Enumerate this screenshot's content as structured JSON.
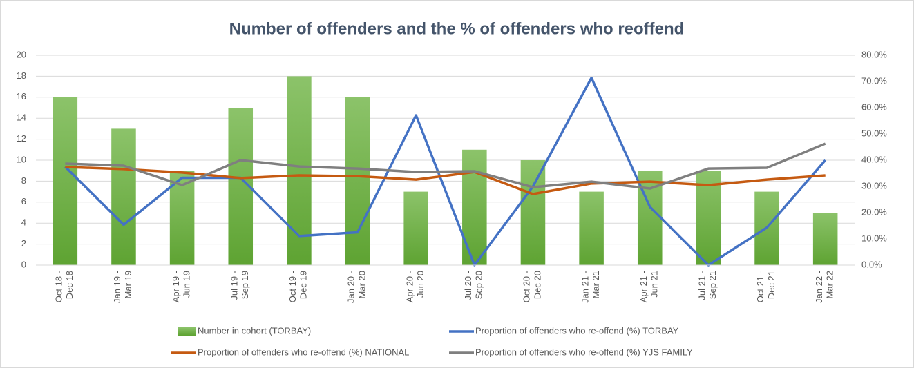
{
  "chart_data": {
    "type": "bar_line",
    "title": "Number of offenders and the % of offenders who reoffend",
    "categories": [
      "Oct 18 - Dec 18",
      "Jan 19 - Mar 19",
      "Apr 19 - Jun 19",
      "Jul 19 - Sep 19",
      "Oct 19 - Dec 19",
      "Jan 20 - Mar 20",
      "Apr 20 - Jun 20",
      "Jul 20 - Sep 20",
      "Oct 20 - Dec 20",
      "Jan 21 - Mar 21",
      "Apr 21 - Jun 21",
      "Jul 21 - Sep 21",
      "Oct 21 - Dec 21",
      "Jan 22 - Mar 22"
    ],
    "series": [
      {
        "name": "Number in cohort (TORBAY)",
        "type": "bar",
        "color": "#70ad47",
        "values": [
          16,
          13,
          9,
          15,
          18,
          16,
          7,
          11,
          10,
          7,
          9,
          9,
          7,
          5
        ]
      },
      {
        "name": "Proportion of offenders who re-offend (%) TORBAY",
        "type": "line",
        "axis": "y2",
        "color": "#4472c4",
        "values": [
          37.5,
          15.4,
          33.3,
          33.3,
          11.1,
          12.5,
          57.1,
          0,
          30,
          71.4,
          22.2,
          0,
          14.3,
          40
        ]
      },
      {
        "name": "Proportion of offenders who re-offend (%) NATIONAL",
        "type": "line",
        "axis": "y2",
        "color": "#c55a11",
        "values": [
          37.4,
          36.6,
          35.3,
          33.2,
          34.2,
          33.9,
          32.6,
          35.5,
          27.1,
          31.1,
          31.8,
          30.5,
          32.6,
          34.2
        ]
      },
      {
        "name": "Proportion of offenders who re-offend (%) YJS FAMILY",
        "type": "line",
        "axis": "y2",
        "color": "#7f7f7f",
        "values": [
          38.7,
          37.9,
          30.5,
          40,
          37.6,
          36.8,
          35.5,
          35.8,
          29.7,
          31.8,
          29.2,
          36.8,
          37.1,
          46.3
        ]
      }
    ],
    "ylim": [
      0,
      20
    ],
    "yticks": [
      0,
      2,
      4,
      6,
      8,
      10,
      12,
      14,
      16,
      18,
      20
    ],
    "y2lim": [
      0,
      80
    ],
    "y2ticks": [
      {
        "value": 0,
        "label": "0.0%"
      },
      {
        "value": 10,
        "label": "10.0%"
      },
      {
        "value": 20,
        "label": "20.0%"
      },
      {
        "value": 30,
        "label": "30.0%"
      },
      {
        "value": 40,
        "label": "40.0%"
      },
      {
        "value": 50,
        "label": "50.0%"
      },
      {
        "value": 60,
        "label": "60.0%"
      },
      {
        "value": 70,
        "label": "70.0%"
      },
      {
        "value": 80,
        "label": "80.0%"
      }
    ],
    "grid": true
  }
}
